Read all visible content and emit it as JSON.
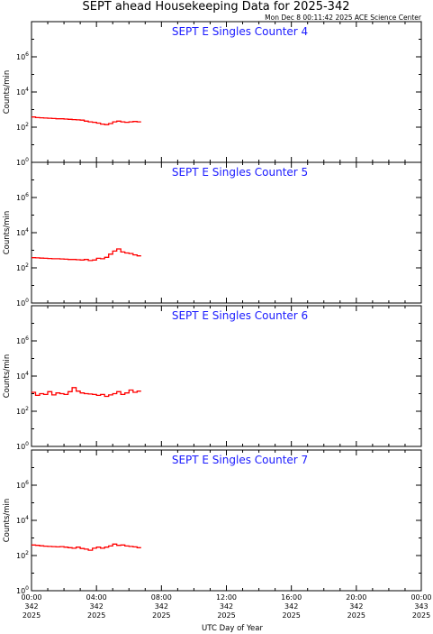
{
  "page": {
    "title": "SEPT ahead Housekeeping Data for 2025-342",
    "timestamp": "Mon Dec  8 00:11:42 2025 ACE Science Center"
  },
  "colors": {
    "series": "#ff0000",
    "panel_label": "#1a1aff",
    "axes": "#000000"
  },
  "chart_data": [
    {
      "type": "line",
      "step": true,
      "title": "SEPT E Singles Counter 4",
      "ylabel": "Counts/min",
      "xlabel": "",
      "yscale": "log",
      "ylim": [
        1,
        100000000
      ],
      "y_ticks": [
        {
          "value": 1,
          "label": "10",
          "exp": "0"
        },
        {
          "value": 100,
          "label": "10",
          "exp": "2"
        },
        {
          "value": 10000,
          "label": "10",
          "exp": "4"
        },
        {
          "value": 1000000,
          "label": "10",
          "exp": "6"
        }
      ],
      "xlim": [
        0,
        24
      ],
      "series": [
        {
          "x": [
            0.0,
            0.25,
            0.5,
            0.75,
            1.0,
            1.25,
            1.5,
            1.75,
            2.0,
            2.25,
            2.5,
            2.75,
            3.0,
            3.25,
            3.5,
            3.75,
            4.0,
            4.25,
            4.5,
            4.75,
            5.0,
            5.25,
            5.5,
            5.75,
            6.0,
            6.25,
            6.5
          ],
          "y": [
            380,
            350,
            340,
            330,
            320,
            310,
            300,
            300,
            290,
            280,
            270,
            260,
            250,
            220,
            200,
            190,
            170,
            150,
            140,
            160,
            200,
            220,
            200,
            190,
            200,
            210,
            200
          ]
        }
      ]
    },
    {
      "type": "line",
      "step": true,
      "title": "SEPT E Singles Counter 5",
      "ylabel": "Counts/min",
      "xlabel": "",
      "yscale": "log",
      "ylim": [
        1,
        100000000
      ],
      "y_ticks": [
        {
          "value": 1,
          "label": "10",
          "exp": "0"
        },
        {
          "value": 100,
          "label": "10",
          "exp": "2"
        },
        {
          "value": 10000,
          "label": "10",
          "exp": "4"
        },
        {
          "value": 1000000,
          "label": "10",
          "exp": "6"
        }
      ],
      "xlim": [
        0,
        24
      ],
      "series": [
        {
          "x": [
            0.0,
            0.25,
            0.5,
            0.75,
            1.0,
            1.25,
            1.5,
            1.75,
            2.0,
            2.25,
            2.5,
            2.75,
            3.0,
            3.25,
            3.5,
            3.75,
            4.0,
            4.25,
            4.5,
            4.75,
            5.0,
            5.25,
            5.5,
            5.75,
            6.0,
            6.25,
            6.5
          ],
          "y": [
            380,
            370,
            360,
            350,
            340,
            330,
            330,
            320,
            310,
            300,
            300,
            290,
            280,
            300,
            260,
            280,
            350,
            330,
            400,
            600,
            900,
            1200,
            800,
            700,
            650,
            550,
            480
          ]
        }
      ]
    },
    {
      "type": "line",
      "step": true,
      "title": "SEPT E Singles Counter 6",
      "ylabel": "Counts/min",
      "xlabel": "",
      "yscale": "log",
      "ylim": [
        1,
        100000000
      ],
      "y_ticks": [
        {
          "value": 1,
          "label": "10",
          "exp": "0"
        },
        {
          "value": 100,
          "label": "10",
          "exp": "2"
        },
        {
          "value": 10000,
          "label": "10",
          "exp": "4"
        },
        {
          "value": 1000000,
          "label": "10",
          "exp": "6"
        }
      ],
      "xlim": [
        0,
        24
      ],
      "series": [
        {
          "x": [
            0.0,
            0.25,
            0.5,
            0.75,
            1.0,
            1.25,
            1.5,
            1.75,
            2.0,
            2.25,
            2.5,
            2.75,
            3.0,
            3.25,
            3.5,
            3.75,
            4.0,
            4.25,
            4.5,
            4.75,
            5.0,
            5.25,
            5.5,
            5.75,
            6.0,
            6.25,
            6.5
          ],
          "y": [
            1200,
            800,
            1000,
            900,
            1300,
            850,
            1100,
            1000,
            900,
            1300,
            2200,
            1400,
            1100,
            1000,
            950,
            900,
            800,
            900,
            700,
            850,
            1000,
            1300,
            900,
            1100,
            1600,
            1200,
            1400
          ]
        }
      ]
    },
    {
      "type": "line",
      "step": true,
      "title": "SEPT E Singles Counter 7",
      "ylabel": "Counts/min",
      "xlabel": "",
      "yscale": "log",
      "ylim": [
        1,
        100000000
      ],
      "y_ticks": [
        {
          "value": 1,
          "label": "10",
          "exp": "0"
        },
        {
          "value": 100,
          "label": "10",
          "exp": "2"
        },
        {
          "value": 10000,
          "label": "10",
          "exp": "4"
        },
        {
          "value": 1000000,
          "label": "10",
          "exp": "6"
        }
      ],
      "xlim": [
        0,
        24
      ],
      "series": [
        {
          "x": [
            0.0,
            0.25,
            0.5,
            0.75,
            1.0,
            1.25,
            1.5,
            1.75,
            2.0,
            2.25,
            2.5,
            2.75,
            3.0,
            3.25,
            3.5,
            3.75,
            4.0,
            4.25,
            4.5,
            4.75,
            5.0,
            5.25,
            5.5,
            5.75,
            6.0,
            6.25,
            6.5
          ],
          "y": [
            400,
            380,
            360,
            340,
            330,
            320,
            310,
            320,
            300,
            280,
            260,
            300,
            250,
            230,
            200,
            260,
            300,
            260,
            300,
            350,
            450,
            380,
            400,
            350,
            330,
            310,
            280
          ]
        }
      ]
    }
  ],
  "x_axis": {
    "label": "UTC Day of Year",
    "ticks": [
      {
        "value": 0,
        "time": "00:00",
        "day": "342",
        "year": "2025"
      },
      {
        "value": 4,
        "time": "04:00",
        "day": "342",
        "year": "2025"
      },
      {
        "value": 8,
        "time": "08:00",
        "day": "342",
        "year": "2025"
      },
      {
        "value": 12,
        "time": "12:00",
        "day": "342",
        "year": "2025"
      },
      {
        "value": 16,
        "time": "16:00",
        "day": "342",
        "year": "2025"
      },
      {
        "value": 20,
        "time": "20:00",
        "day": "342",
        "year": "2025"
      },
      {
        "value": 24,
        "time": "00:00",
        "day": "343",
        "year": "2025"
      }
    ]
  }
}
